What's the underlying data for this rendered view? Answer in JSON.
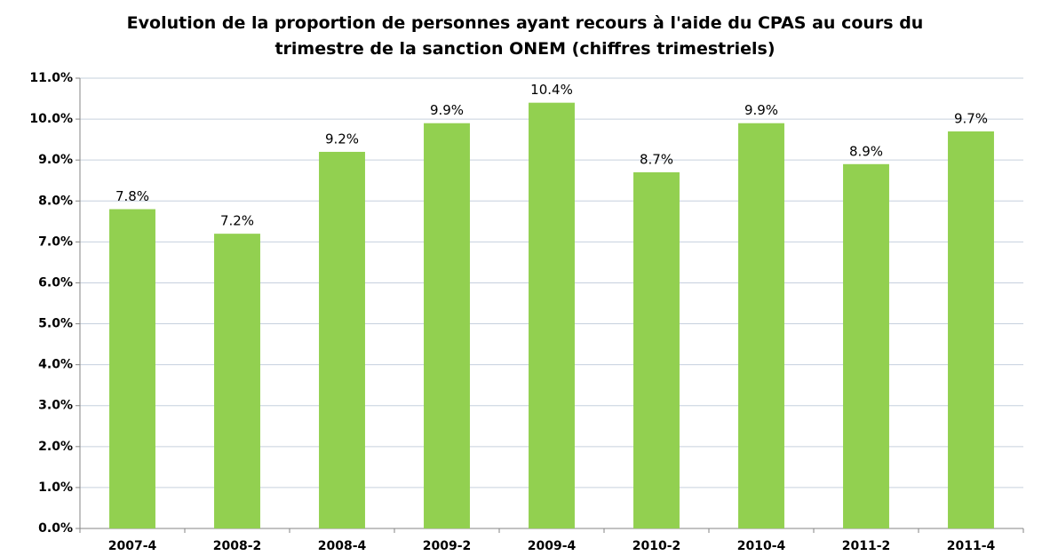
{
  "chart_data": {
    "type": "bar",
    "title": "Evolution de la proportion de personnes ayant recours à l'aide du CPAS au cours du trimestre de la sanction ONEM (chiffres trimestriels)",
    "categories": [
      "2007-4",
      "2008-2",
      "2008-4",
      "2009-2",
      "2009-4",
      "2010-2",
      "2010-4",
      "2011-2",
      "2011-4"
    ],
    "values": [
      7.8,
      7.2,
      9.2,
      9.9,
      10.4,
      8.7,
      9.9,
      8.9,
      9.7
    ],
    "value_labels": [
      "7.8%",
      "7.2%",
      "9.2%",
      "9.9%",
      "10.4%",
      "8.7%",
      "9.9%",
      "8.9%",
      "9.7%"
    ],
    "color": "#92d050",
    "ylim": [
      0,
      11
    ],
    "yticks": [
      {
        "value": 0,
        "label": "0.0%"
      },
      {
        "value": 1,
        "label": "1.0%"
      },
      {
        "value": 2,
        "label": "2.0%"
      },
      {
        "value": 3,
        "label": "3.0%"
      },
      {
        "value": 4,
        "label": "4.0%"
      },
      {
        "value": 5,
        "label": "5.0%"
      },
      {
        "value": 6,
        "label": "6.0%"
      },
      {
        "value": 7,
        "label": "7.0%"
      },
      {
        "value": 8,
        "label": "8.0%"
      },
      {
        "value": 9,
        "label": "9.0%"
      },
      {
        "value": 10,
        "label": "10.0%"
      },
      {
        "value": 11,
        "label": "11.0%"
      }
    ],
    "grid": true
  }
}
